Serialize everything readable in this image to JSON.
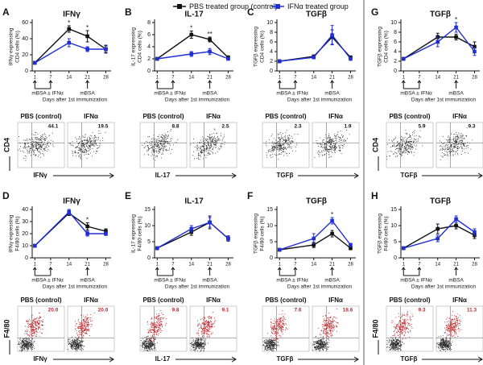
{
  "legend": [
    {
      "name": "PBS treated group (control)",
      "color": "#111111"
    },
    {
      "name": "IFNα treated group",
      "color": "#1f2fd6"
    }
  ],
  "immunization_days": [
    1,
    7,
    21
  ],
  "chart_data": [
    {
      "type": "line",
      "panel": "A",
      "title": "IFNγ",
      "ylabel": [
        "IFNγ expressing",
        "CD4 cells (%)"
      ],
      "x": [
        1,
        14,
        21,
        28
      ],
      "xlim": [
        0,
        30
      ],
      "xticks": [
        1,
        7,
        14,
        21,
        28
      ],
      "ylim": [
        0,
        60
      ],
      "yticks": [
        0,
        20,
        40,
        60
      ],
      "note_primary": "mBSA ± IFNα",
      "note_boost": "mBSA",
      "xlabel": "Days after 1st immunization",
      "series": [
        {
          "color": "#111111",
          "values": [
            10,
            52,
            43,
            27
          ],
          "errors": [
            1,
            4,
            7,
            4
          ]
        },
        {
          "color": "#1f2fd6",
          "values": [
            10,
            35,
            27,
            27
          ],
          "errors": [
            1,
            5,
            3,
            5
          ]
        }
      ],
      "annotations": [
        {
          "x": 14,
          "text": "*"
        },
        {
          "x": 21,
          "text": "*"
        }
      ]
    },
    {
      "type": "line",
      "panel": "B",
      "title": "IL-17",
      "ylabel": [
        "IL-17 expressing",
        "CD4 cells (%)"
      ],
      "x": [
        1,
        14,
        21,
        28
      ],
      "xlim": [
        0,
        30
      ],
      "xticks": [
        1,
        7,
        14,
        21,
        28
      ],
      "ylim": [
        0,
        8
      ],
      "yticks": [
        0,
        2,
        4,
        6,
        8
      ],
      "note_primary": "mBSA ± IFNα",
      "note_boost": "mBSA",
      "xlabel": "Days after 1st immunization",
      "series": [
        {
          "color": "#111111",
          "values": [
            2,
            6,
            5.2,
            2.2
          ],
          "errors": [
            0.1,
            0.6,
            0.4,
            0.3
          ]
        },
        {
          "color": "#1f2fd6",
          "values": [
            2,
            2.8,
            3.2,
            2
          ],
          "errors": [
            0.1,
            0.4,
            0.5,
            0.2
          ]
        }
      ],
      "annotations": [
        {
          "x": 14,
          "text": "*"
        },
        {
          "x": 21,
          "text": "**"
        }
      ]
    },
    {
      "type": "line",
      "panel": "C",
      "title": "TGFβ",
      "ylabel": [
        "TGFβ expressing",
        "CD4 cells (%)"
      ],
      "x": [
        1,
        14,
        21,
        28
      ],
      "xlim": [
        0,
        30
      ],
      "xticks": [
        1,
        7,
        14,
        21,
        28
      ],
      "ylim": [
        0,
        10
      ],
      "yticks": [
        0,
        2,
        4,
        6,
        8,
        10
      ],
      "note_primary": "mBSA ± IFNα",
      "note_boost": "mBSA",
      "xlabel": "Days after 1st immunization",
      "series": [
        {
          "color": "#111111",
          "values": [
            2,
            3,
            7,
            2.8
          ],
          "errors": [
            0.1,
            0.3,
            1.5,
            0.3
          ]
        },
        {
          "color": "#1f2fd6",
          "values": [
            2,
            2.8,
            7.4,
            2.5
          ],
          "errors": [
            0.1,
            0.3,
            2,
            0.3
          ]
        }
      ],
      "annotations": []
    },
    {
      "type": "line",
      "panel": "G",
      "title": "TGFβ",
      "ylabel": [
        "TGFβ expressing",
        "CD4 cells (%)"
      ],
      "x": [
        1,
        14,
        21,
        28
      ],
      "xlim": [
        0,
        30
      ],
      "xticks": [
        1,
        7,
        14,
        21,
        28
      ],
      "ylim": [
        0,
        10
      ],
      "yticks": [
        0,
        2,
        4,
        6,
        8,
        10
      ],
      "note_primary": "mBSA ± IFNα",
      "note_boost": "mBSA",
      "xlabel": "Days after 1st immunization",
      "series": [
        {
          "color": "#111111",
          "values": [
            2.5,
            7,
            7,
            5
          ],
          "errors": [
            0.2,
            0.8,
            0.6,
            1
          ]
        },
        {
          "color": "#1f2fd6",
          "values": [
            2.5,
            6,
            9,
            4
          ],
          "errors": [
            0.2,
            1,
            1,
            0.8
          ]
        }
      ],
      "annotations": [
        {
          "x": 21,
          "text": "*"
        }
      ]
    },
    {
      "type": "line",
      "panel": "D",
      "title": "IFNγ",
      "ylabel": [
        "IFNγ expressing",
        "F4/80 cells (%)"
      ],
      "x": [
        1,
        14,
        21,
        28
      ],
      "xlim": [
        0,
        30
      ],
      "xticks": [
        1,
        7,
        14,
        21,
        28
      ],
      "ylim": [
        0,
        40
      ],
      "yticks": [
        0,
        10,
        20,
        30,
        40
      ],
      "note_primary": "mBSA ± IFNα",
      "note_boost": "mBSA",
      "xlabel": "Days after 1st immunization",
      "series": [
        {
          "color": "#111111",
          "values": [
            10,
            37,
            26,
            22
          ],
          "errors": [
            0.5,
            2,
            3,
            2
          ]
        },
        {
          "color": "#1f2fd6",
          "values": [
            10,
            38,
            20,
            20
          ],
          "errors": [
            0.5,
            2,
            2,
            1.5
          ]
        }
      ],
      "annotations": [
        {
          "x": 21,
          "text": "*"
        }
      ]
    },
    {
      "type": "line",
      "panel": "E",
      "title": "IL-17",
      "ylabel": [
        "IL-17 expressing",
        "F4/80 cells (%)"
      ],
      "x": [
        1,
        14,
        21,
        28
      ],
      "xlim": [
        0,
        30
      ],
      "xticks": [
        1,
        7,
        14,
        21,
        28
      ],
      "ylim": [
        0,
        15
      ],
      "yticks": [
        0,
        5,
        10,
        15
      ],
      "note_primary": "mBSA ± IFNα",
      "note_boost": "mBSA",
      "xlabel": "Days after 1st immunization",
      "series": [
        {
          "color": "#111111",
          "values": [
            3,
            8,
            11,
            6
          ],
          "errors": [
            0.2,
            1,
            2,
            0.8
          ]
        },
        {
          "color": "#1f2fd6",
          "values": [
            3,
            9,
            11,
            6
          ],
          "errors": [
            0.2,
            1,
            1.5,
            0.8
          ]
        }
      ],
      "annotations": []
    },
    {
      "type": "line",
      "panel": "F",
      "title": "TGFβ",
      "ylabel": [
        "TGFβ expressing",
        "F4/80 cells (%)"
      ],
      "x": [
        1,
        14,
        21,
        28
      ],
      "xlim": [
        0,
        30
      ],
      "xticks": [
        1,
        7,
        14,
        21,
        28
      ],
      "ylim": [
        0,
        15
      ],
      "yticks": [
        0,
        5,
        10,
        15
      ],
      "note_primary": "mBSA ± IFNα",
      "note_boost": "mBSA",
      "xlabel": "Days after 1st immunization",
      "series": [
        {
          "color": "#111111",
          "values": [
            2.5,
            4,
            7.5,
            3
          ],
          "errors": [
            0.2,
            0.8,
            1,
            0.5
          ]
        },
        {
          "color": "#1f2fd6",
          "values": [
            2.5,
            6,
            11.5,
            4
          ],
          "errors": [
            0.2,
            1.5,
            1,
            0.5
          ]
        }
      ],
      "annotations": [
        {
          "x": 21,
          "text": "*"
        }
      ]
    },
    {
      "type": "line",
      "panel": "H",
      "title": "TGFβ",
      "ylabel": [
        "TGFβ expressing",
        "F4/80 cells (%)"
      ],
      "x": [
        1,
        14,
        21,
        28
      ],
      "xlim": [
        0,
        30
      ],
      "xticks": [
        1,
        7,
        14,
        21,
        28
      ],
      "ylim": [
        0,
        15
      ],
      "yticks": [
        0,
        5,
        10,
        15
      ],
      "note_primary": "mBSA ± IFNα",
      "note_boost": "mBSA",
      "xlabel": "Days after 1st immunization",
      "series": [
        {
          "color": "#111111",
          "values": [
            3,
            9,
            10,
            7
          ],
          "errors": [
            0.2,
            1.5,
            1,
            1
          ]
        },
        {
          "color": "#1f2fd6",
          "values": [
            3,
            6,
            12,
            8
          ],
          "errors": [
            0.2,
            1,
            1,
            1
          ]
        }
      ],
      "annotations": []
    }
  ],
  "flow_plots": [
    {
      "y_label": "CD4",
      "x_label": "IFNγ",
      "plots": [
        {
          "title": "PBS (control)",
          "percent": "44.1"
        },
        {
          "title": "IFNα",
          "percent": "19.5"
        }
      ]
    },
    {
      "x_label": "IL-17",
      "plots": [
        {
          "title": "PBS (control)",
          "percent": "8.8"
        },
        {
          "title": "IFNα",
          "percent": "2.5"
        }
      ]
    },
    {
      "x_label": "TGFβ",
      "plots": [
        {
          "title": "PBS (control)",
          "percent": "2.3"
        },
        {
          "title": "IFNα",
          "percent": "1.9"
        }
      ]
    },
    {
      "y_label": "CD4",
      "x_label": "TGFβ",
      "plots": [
        {
          "title": "PBS (control)",
          "percent": "5.9"
        },
        {
          "title": "IFNα",
          "percent": "9.3"
        }
      ]
    },
    {
      "y_label": "F4/80",
      "x_label": "IFNγ",
      "highlight_color": "#c0282d",
      "plots": [
        {
          "title": "PBS (control)",
          "percent": "20.0"
        },
        {
          "title": "IFNα",
          "percent": "20.0"
        }
      ]
    },
    {
      "x_label": "IL-17",
      "highlight_color": "#c0282d",
      "plots": [
        {
          "title": "PBS (control)",
          "percent": "9.8"
        },
        {
          "title": "IFNα",
          "percent": "9.1"
        }
      ]
    },
    {
      "x_label": "TGFβ",
      "highlight_color": "#c0282d",
      "plots": [
        {
          "title": "PBS (control)",
          "percent": "7.6"
        },
        {
          "title": "IFNα",
          "percent": "18.6"
        }
      ]
    },
    {
      "y_label": "F4/80",
      "x_label": "TGFβ",
      "highlight_color": "#c0282d",
      "plots": [
        {
          "title": "PBS (control)",
          "percent": "9.3"
        },
        {
          "title": "IFNα",
          "percent": "11.3"
        }
      ]
    }
  ]
}
